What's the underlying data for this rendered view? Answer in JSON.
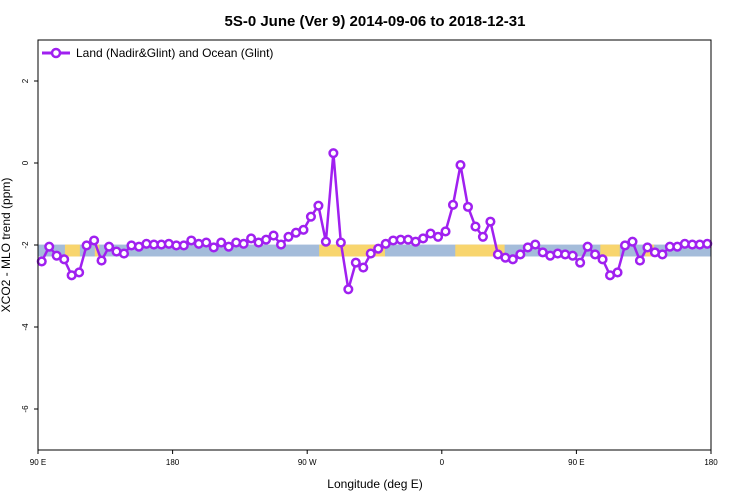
{
  "chart_data": {
    "type": "line",
    "title": "5S-0 June (Ver 9)   2014-09-06 to 2018-12-31",
    "xlabel": "Longitude (deg E)",
    "ylabel": "XCO2 - MLO trend (ppm)",
    "xlim": [
      90,
      540
    ],
    "ylim": [
      -7,
      3
    ],
    "xticks": [
      {
        "v": 90,
        "label": "90 E"
      },
      {
        "v": 180,
        "label": "180"
      },
      {
        "v": 270,
        "label": "90 W"
      },
      {
        "v": 360,
        "label": "0"
      },
      {
        "v": 450,
        "label": "90 E"
      },
      {
        "v": 540,
        "label": "180"
      }
    ],
    "yticks": [
      {
        "v": 2,
        "label": "2"
      },
      {
        "v": 0,
        "label": "0"
      },
      {
        "v": -2,
        "label": "-2"
      },
      {
        "v": -4,
        "label": "-4"
      },
      {
        "v": -6,
        "label": "-6"
      }
    ],
    "legend": {
      "position": "top-left",
      "label": "Land (Nadir&Glint) and Ocean (Glint)"
    },
    "colors": {
      "series": "#A020F0",
      "ocean_band": "#A4BCDA",
      "land_band": "#F8D56E"
    },
    "band": {
      "ymin": -2.28,
      "ymax": -1.99,
      "land_segments": [
        [
          108,
          118
        ],
        [
          128,
          131
        ],
        [
          278,
          322
        ],
        [
          369,
          402
        ],
        [
          466,
          479
        ],
        [
          496,
          502
        ]
      ]
    },
    "series": [
      {
        "name": "Land (Nadir&Glint) and Ocean (Glint)",
        "x_start": 92.5,
        "x_step": 5,
        "values": [
          -2.4,
          -2.04,
          -2.26,
          -2.35,
          -2.74,
          -2.67,
          -2.01,
          -1.89,
          -2.38,
          -2.04,
          -2.16,
          -2.21,
          -2.01,
          -2.04,
          -1.97,
          -1.99,
          -1.99,
          -1.97,
          -2.01,
          -2.01,
          -1.89,
          -1.97,
          -1.94,
          -2.06,
          -1.94,
          -2.04,
          -1.94,
          -1.97,
          -1.84,
          -1.94,
          -1.87,
          -1.77,
          -1.99,
          -1.8,
          -1.7,
          -1.63,
          -1.31,
          -1.04,
          -1.92,
          0.24,
          -1.94,
          -3.08,
          -2.43,
          -2.55,
          -2.21,
          -2.09,
          -1.97,
          -1.89,
          -1.87,
          -1.87,
          -1.92,
          -1.84,
          -1.72,
          -1.8,
          -1.67,
          -1.02,
          -0.05,
          -1.07,
          -1.55,
          -1.8,
          -1.43,
          -2.23,
          -2.31,
          -2.35,
          -2.23,
          -2.06,
          -1.99,
          -2.18,
          -2.26,
          -2.21,
          -2.23,
          -2.26,
          -2.43,
          -2.04,
          -2.23,
          -2.35,
          -2.74,
          -2.67,
          -2.01,
          -1.92,
          -2.38,
          -2.06,
          -2.18,
          -2.23,
          -2.04,
          -2.04,
          -1.97,
          -1.99,
          -1.99,
          -1.97
        ]
      }
    ]
  }
}
